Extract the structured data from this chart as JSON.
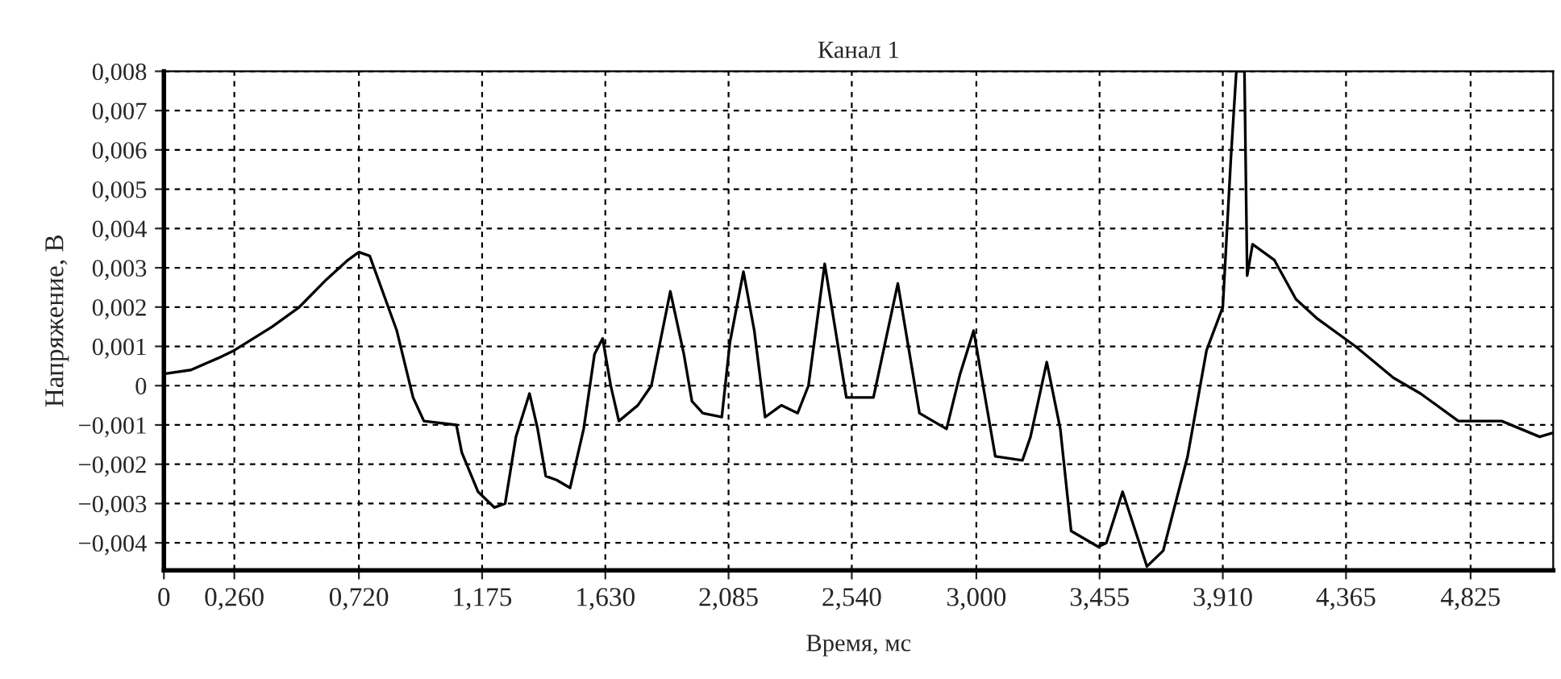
{
  "chart_data": {
    "type": "line",
    "title": "Канал 1",
    "xlabel": "Время, мс",
    "ylabel": "Напряжение, В",
    "x": [
      0,
      0.1,
      0.2,
      0.26,
      0.4,
      0.5,
      0.6,
      0.68,
      0.72,
      0.76,
      0.86,
      0.92,
      0.96,
      1.08,
      1.1,
      1.16,
      1.22,
      1.26,
      1.3,
      1.35,
      1.38,
      1.41,
      1.45,
      1.5,
      1.55,
      1.59,
      1.62,
      1.65,
      1.68,
      1.75,
      1.8,
      1.87,
      1.92,
      1.95,
      1.99,
      2.06,
      2.09,
      2.14,
      2.18,
      2.22,
      2.28,
      2.34,
      2.38,
      2.44,
      2.52,
      2.62,
      2.71,
      2.79,
      2.89,
      2.94,
      2.99,
      3.07,
      3.17,
      3.2,
      3.26,
      3.31,
      3.35,
      3.45,
      3.48,
      3.54,
      3.63,
      3.69,
      3.78,
      3.85,
      3.91,
      3.94,
      3.96,
      3.99,
      4.0,
      4.02,
      4.1,
      4.18,
      4.26,
      4.4,
      4.54,
      4.64,
      4.78,
      4.94,
      5.08,
      5.13
    ],
    "values": [
      0.0003,
      0.0004,
      0.0007,
      0.0009,
      0.0015,
      0.002,
      0.0027,
      0.0032,
      0.0034,
      0.0033,
      0.0014,
      -0.0003,
      -0.0009,
      -0.001,
      -0.0017,
      -0.0027,
      -0.0031,
      -0.003,
      -0.0013,
      -0.0002,
      -0.0011,
      -0.0023,
      -0.0024,
      -0.0026,
      -0.0011,
      0.0008,
      0.0012,
      0.0,
      -0.0009,
      -0.0005,
      0.0,
      0.0024,
      0.0008,
      -0.0004,
      -0.0007,
      -0.0008,
      0.0011,
      0.0029,
      0.0014,
      -0.0008,
      -0.0005,
      -0.0007,
      0.0,
      0.0031,
      -0.0003,
      -0.0003,
      0.0026,
      -0.0007,
      -0.0011,
      0.0003,
      0.0014,
      -0.0018,
      -0.0019,
      -0.0013,
      0.0006,
      -0.0011,
      -0.0037,
      -0.0041,
      -0.004,
      -0.0027,
      -0.0046,
      -0.0042,
      -0.0018,
      0.0009,
      0.002,
      0.0058,
      0.008,
      0.008,
      0.0028,
      0.0036,
      0.0032,
      0.0022,
      0.0017,
      0.001,
      0.0002,
      -0.0002,
      -0.0009,
      -0.0009,
      -0.0013,
      -0.0012
    ],
    "color": "#000000",
    "line_style": "solid",
    "grid": true,
    "xlim": [
      0,
      5.13
    ],
    "ylim": [
      -0.0047,
      0.008
    ],
    "xticks": [
      0,
      {
        "value": 0.26,
        "label": "0,260"
      },
      {
        "value": 0.72,
        "label": "0,720"
      },
      {
        "value": 1.175,
        "label": "1,175"
      },
      {
        "value": 1.63,
        "label": "1,630"
      },
      {
        "value": 2.085,
        "label": "2,085"
      },
      {
        "value": 2.54,
        "label": "2,540"
      },
      {
        "value": 3.0,
        "label": "3,000"
      },
      {
        "value": 3.455,
        "label": "3,455"
      },
      {
        "value": 3.91,
        "label": "3,910"
      },
      {
        "value": 4.365,
        "label": "4,365"
      },
      {
        "value": 4.825,
        "label": "4,825"
      }
    ],
    "yticks": [
      {
        "value": 0.008,
        "label": "0,008"
      },
      {
        "value": 0.007,
        "label": "0,007"
      },
      {
        "value": 0.006,
        "label": "0,006"
      },
      {
        "value": 0.005,
        "label": "0,005"
      },
      {
        "value": 0.004,
        "label": "0,004"
      },
      {
        "value": 0.003,
        "label": "0,003"
      },
      {
        "value": 0.002,
        "label": "0,002"
      },
      {
        "value": 0.001,
        "label": "0,001"
      },
      0,
      {
        "value": -0.001,
        "label": "−0,001"
      },
      {
        "value": -0.002,
        "label": "−0,002"
      },
      {
        "value": -0.003,
        "label": "−0,003"
      },
      {
        "value": -0.004,
        "label": "−0,004"
      }
    ]
  }
}
